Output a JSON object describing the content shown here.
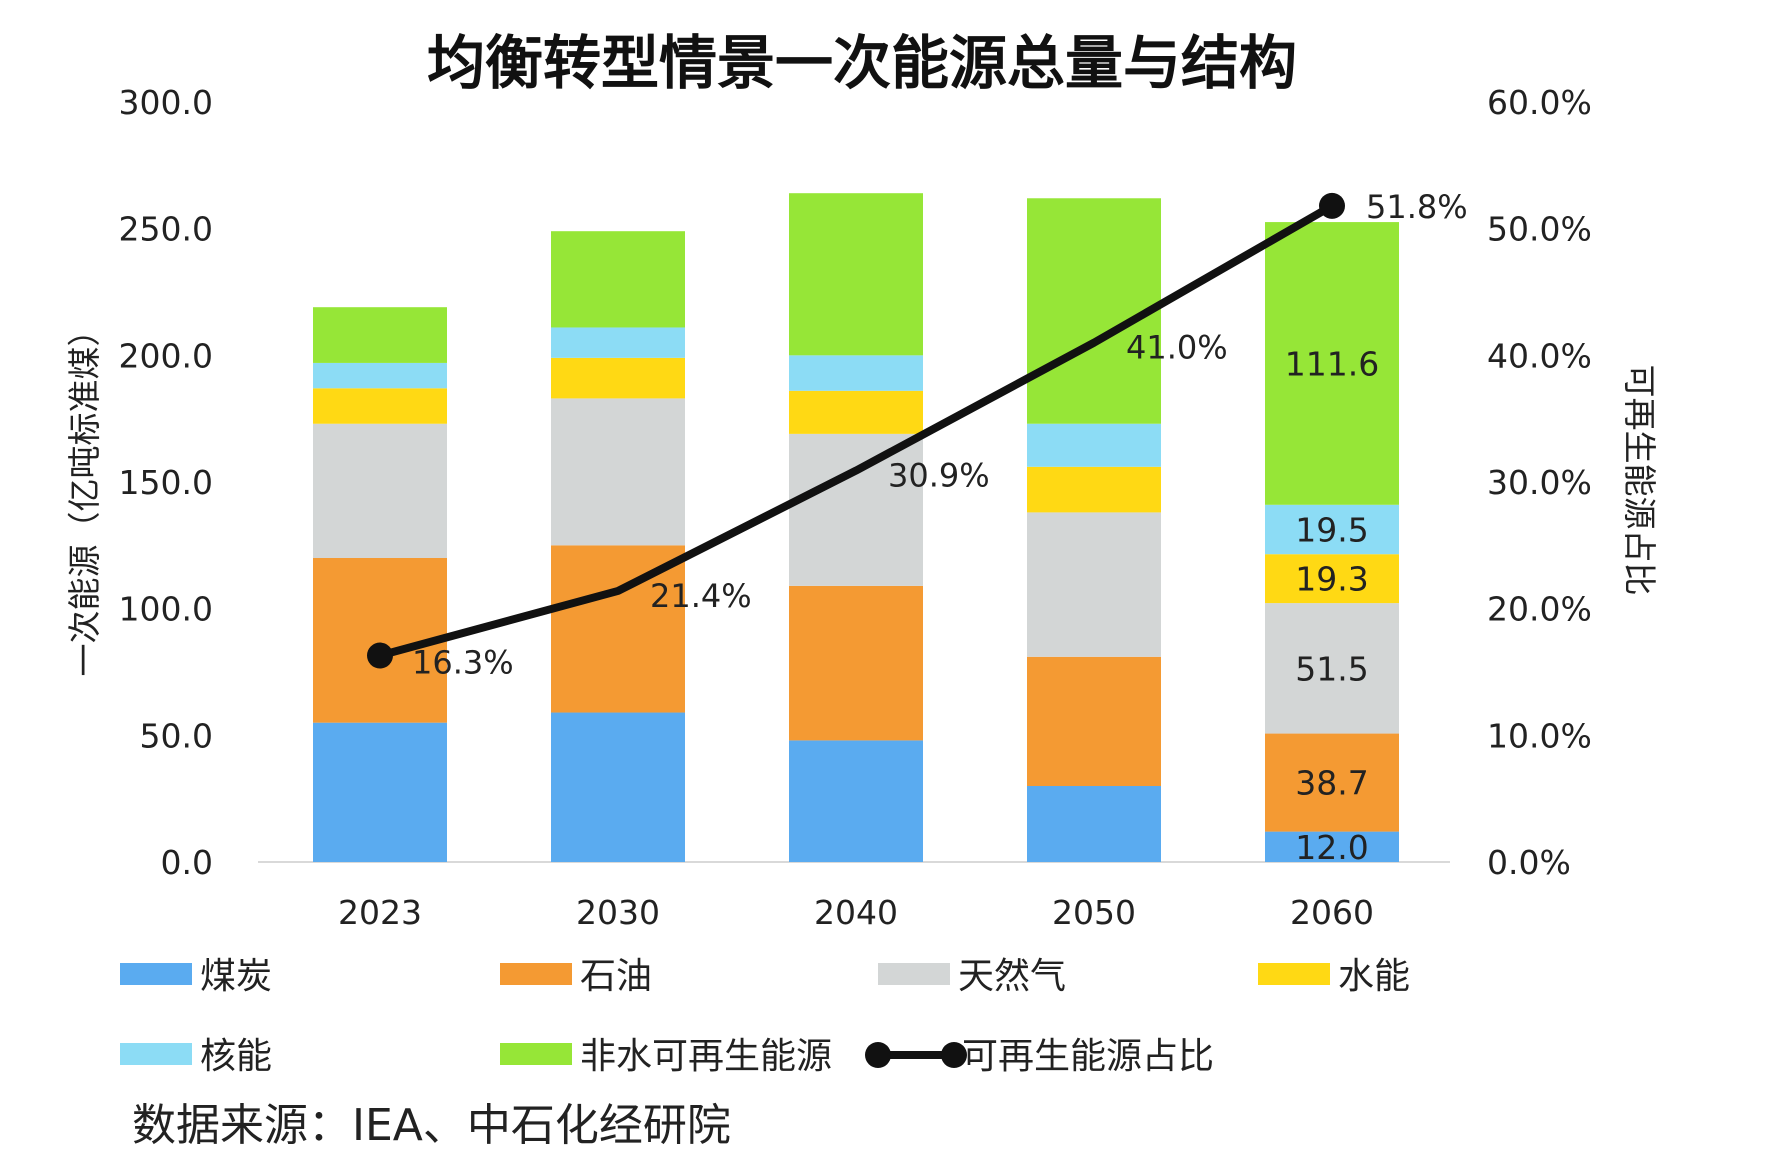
{
  "chart_data": {
    "type": "bar",
    "stacked": true,
    "title": "均衡转型情景一次能源总量与结构",
    "ylabel": "一次能源（亿吨标准煤）",
    "y2label": "可再生能源占比",
    "ylim": [
      0,
      300
    ],
    "y2lim": [
      0,
      60
    ],
    "yticks": [
      "0.0",
      "50.0",
      "100.0",
      "150.0",
      "200.0",
      "250.0",
      "300.0"
    ],
    "y2ticks": [
      "0.0%",
      "10.0%",
      "20.0%",
      "30.0%",
      "40.0%",
      "50.0%",
      "60.0%"
    ],
    "categories": [
      "2023",
      "2030",
      "2040",
      "2050",
      "2060"
    ],
    "series": [
      {
        "name": "煤炭",
        "color": "#5aabf0",
        "values": [
          55,
          59,
          48,
          30,
          12.0
        ],
        "labels": [
          "",
          "",
          "",
          "",
          "12.0"
        ]
      },
      {
        "name": "石油",
        "color": "#f49a33",
        "values": [
          65,
          66,
          61,
          51,
          38.7
        ],
        "labels": [
          "",
          "",
          "",
          "",
          "38.7"
        ]
      },
      {
        "name": "天然气",
        "color": "#d3d6d6",
        "values": [
          53,
          58,
          60,
          57,
          51.5
        ],
        "labels": [
          "",
          "",
          "",
          "",
          "51.5"
        ]
      },
      {
        "name": "水能",
        "color": "#ffd914",
        "values": [
          14,
          16,
          17,
          18,
          19.3
        ],
        "labels": [
          "",
          "",
          "",
          "",
          "19.3"
        ]
      },
      {
        "name": "核能",
        "color": "#8cdcf5",
        "values": [
          10,
          12,
          14,
          17,
          19.5
        ],
        "labels": [
          "",
          "",
          "",
          "",
          "19.5"
        ]
      },
      {
        "name": "非水可再生能源",
        "color": "#96e637",
        "values": [
          22,
          38,
          64,
          89,
          111.6
        ],
        "labels": [
          "",
          "",
          "",
          "",
          "111.6"
        ]
      }
    ],
    "line_series": {
      "name": "可再生能源占比",
      "color": "#111111",
      "values": [
        16.3,
        21.4,
        30.9,
        41.0,
        51.8
      ],
      "labels": [
        "16.3%",
        "21.4%",
        "30.9%",
        "41.0%",
        "51.8%"
      ]
    },
    "grid": false,
    "legend_position": "bottom"
  },
  "source_text": "数据来源：IEA、中石化经研院"
}
